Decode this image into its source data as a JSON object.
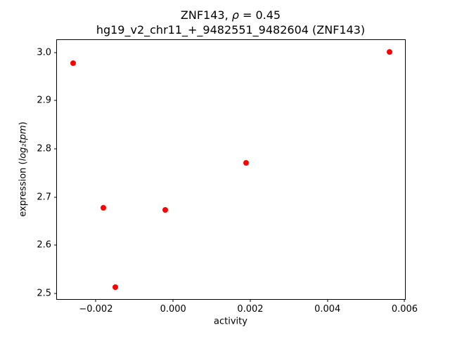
{
  "figure": {
    "title_prefix": "ZNF143, ",
    "title_rho": "ρ",
    "title_rest": " = 0.45",
    "title_line2": "hg19_v2_chr11_+_9482551_9482604 (ZNF143)",
    "xlabel": "activity",
    "ylabel_prefix": "expression (",
    "ylabel_math": "log₂tpm",
    "ylabel_suffix": ")"
  },
  "chart_data": {
    "type": "scatter",
    "title": "ZNF143, ρ = 0.45\nhg19_v2_chr11_+_9482551_9482604 (ZNF143)",
    "xlabel": "activity",
    "ylabel": "expression (log2tpm)",
    "marker_color": "#ff0000",
    "marker_style": "circle",
    "grid": false,
    "legend": "none",
    "xlim": [
      -0.00301,
      0.00601
    ],
    "ylim": [
      2.488,
      3.026
    ],
    "xticks": [
      {
        "value": -0.002,
        "label": "−0.002"
      },
      {
        "value": 0.0,
        "label": "0.000"
      },
      {
        "value": 0.002,
        "label": "0.002"
      },
      {
        "value": 0.004,
        "label": "0.004"
      },
      {
        "value": 0.006,
        "label": "0.006"
      }
    ],
    "yticks": [
      {
        "value": 2.5,
        "label": "2.5"
      },
      {
        "value": 2.6,
        "label": "2.6"
      },
      {
        "value": 2.7,
        "label": "2.7"
      },
      {
        "value": 2.8,
        "label": "2.8"
      },
      {
        "value": 2.9,
        "label": "2.9"
      },
      {
        "value": 3.0,
        "label": "3.0"
      }
    ],
    "points": [
      [
        -0.0026,
        2.978
      ],
      [
        -0.0018,
        2.678
      ],
      [
        -0.0015,
        2.513
      ],
      [
        -0.0002,
        2.673
      ],
      [
        0.0019,
        2.771
      ],
      [
        0.0056,
        3.001
      ]
    ]
  }
}
